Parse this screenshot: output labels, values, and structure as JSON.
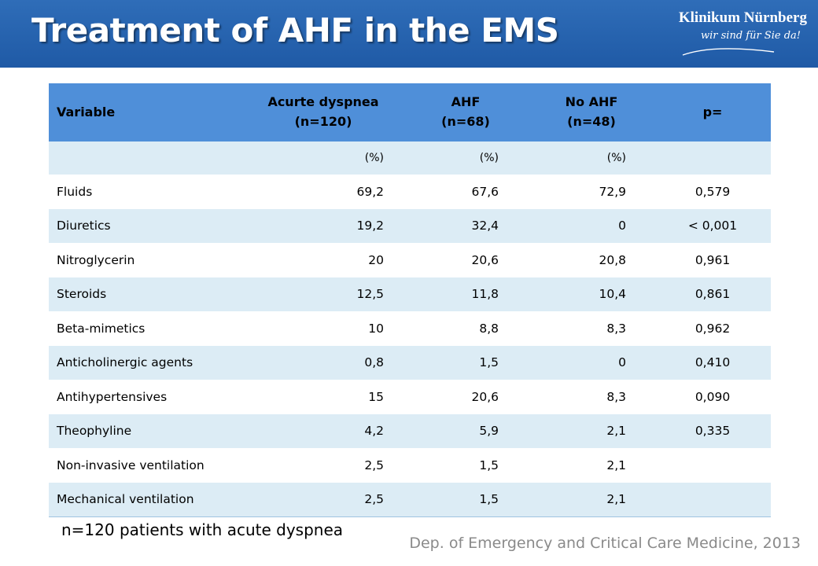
{
  "slide": {
    "title": "Treatment of AHF in the EMS",
    "logo": {
      "name": "Klinikum Nürnberg",
      "slogan": "wir sind für Sie da!"
    },
    "footnote": "n=120 patients with acute dyspnea",
    "source": "Dep. of Emergency and Critical Care Medicine, 2013"
  },
  "table": {
    "headers": [
      {
        "line1": "Variable",
        "line2": ""
      },
      {
        "line1": "Acurte dyspnea",
        "line2": "(n=120)"
      },
      {
        "line1": "AHF",
        "line2": "(n=68)"
      },
      {
        "line1": "No AHF",
        "line2": "(n=48)"
      },
      {
        "line1": "p=",
        "line2": ""
      }
    ],
    "units": [
      "",
      "(%)",
      "(%)",
      "(%)",
      ""
    ],
    "rows": [
      [
        "Fluids",
        "69,2",
        "67,6",
        "72,9",
        "0,579"
      ],
      [
        "Diuretics",
        "19,2",
        "32,4",
        "0",
        "< 0,001"
      ],
      [
        "Nitroglycerin",
        "20",
        "20,6",
        "20,8",
        "0,961"
      ],
      [
        "Steroids",
        "12,5",
        "11,8",
        "10,4",
        "0,861"
      ],
      [
        "Beta-mimetics",
        "10",
        "8,8",
        "8,3",
        "0,962"
      ],
      [
        "Anticholinergic agents",
        "0,8",
        "1,5",
        "0",
        "0,410"
      ],
      [
        "Antihypertensives",
        "15",
        "20,6",
        "8,3",
        "0,090"
      ],
      [
        "Theophyline",
        "4,2",
        "5,9",
        "2,1",
        "0,335"
      ],
      [
        "Non-invasive ventilation",
        "2,5",
        "1,5",
        "2,1",
        ""
      ],
      [
        "Mechanical ventilation",
        "2,5",
        "1,5",
        "2,1",
        ""
      ]
    ]
  },
  "colors": {
    "header_bar": "#1f5aa6",
    "table_header": "#4f8fd9",
    "row_shade": "#dcecf5"
  }
}
